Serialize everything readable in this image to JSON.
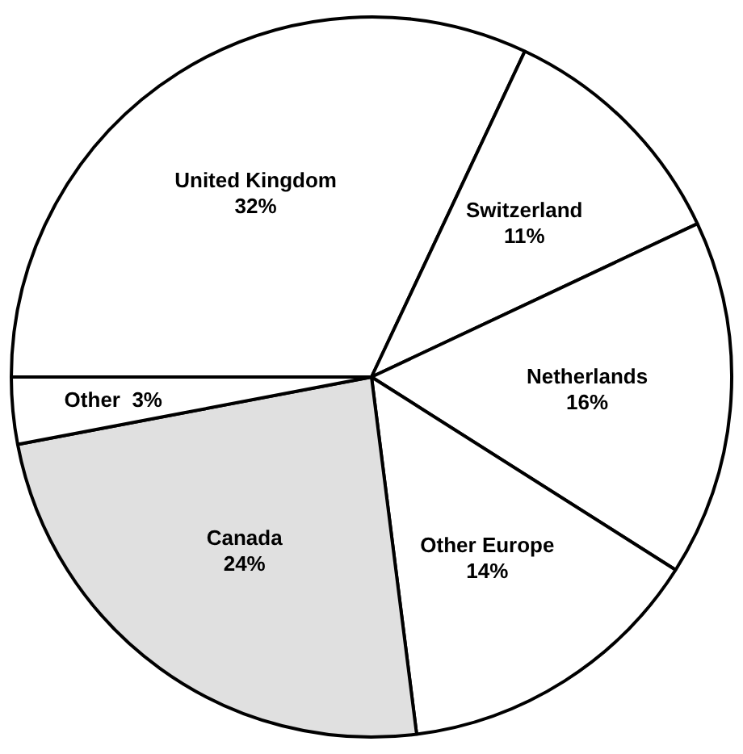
{
  "chart_data": {
    "type": "pie",
    "categories": [
      "United Kingdom",
      "Switzerland",
      "Netherlands",
      "Other Europe",
      "Canada",
      "Other"
    ],
    "values": [
      32,
      11,
      16,
      14,
      24,
      3
    ],
    "value_labels": [
      "32%",
      "11%",
      "16%",
      "14%",
      "24%",
      "3%"
    ],
    "colors": [
      "#ffffff",
      "#ffffff",
      "#ffffff",
      "#ffffff",
      "#e0e0e0",
      "#ffffff"
    ],
    "legend": false
  }
}
